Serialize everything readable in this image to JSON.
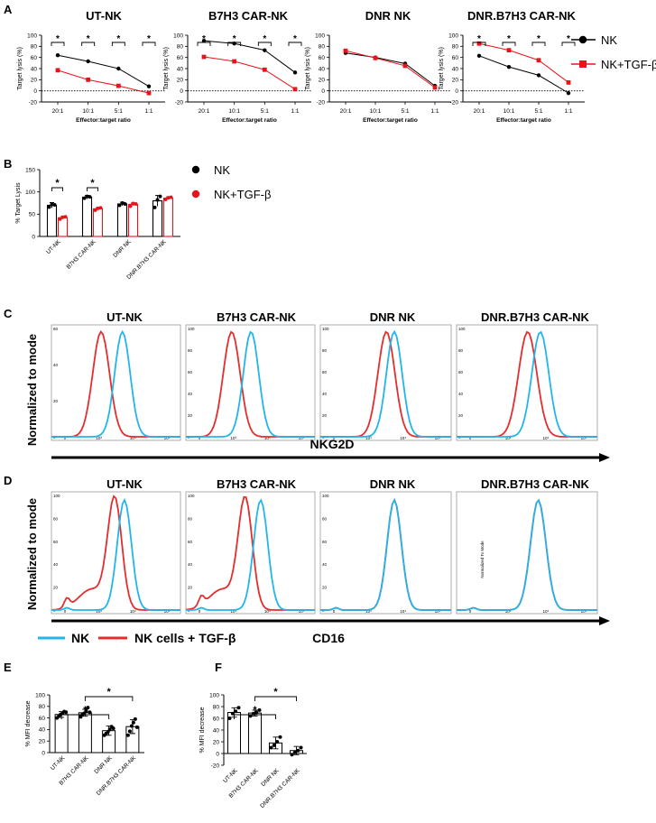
{
  "colors": {
    "nk": "#000000",
    "tgf": "#e8141b",
    "hist_nk": "#22b5ec",
    "hist_tgf": "#e42d2d"
  },
  "panel_letters": [
    "A",
    "B",
    "C",
    "D",
    "E",
    "F"
  ],
  "legend": {
    "a_nk": "NK",
    "a_tgf": "NK+TGF-β",
    "b_nk": "NK",
    "b_tgf": "NK+TGF-β",
    "cd_nk": "NK",
    "cd_tgf": "NK cells + TGF-β"
  },
  "common": {
    "flow_ylabel": "Normalized to mode",
    "nkg2d_label": "NKG2D",
    "cd16_label": "CD16",
    "d4_small_label": "Normalized To Mode",
    "a_ylabel": "Target lysis (%)",
    "a_xlabel": "Effector:target ratio",
    "b_ylabel": "% Target Lysis",
    "ef_ylabel": "% MFI decrease",
    "star": "*"
  },
  "chart_data": [
    {
      "id": "A1",
      "type": "line",
      "title": "UT-NK",
      "categories": [
        "20:1",
        "10:1",
        "5:1",
        "1:1"
      ],
      "ylim": [
        -20,
        100
      ],
      "yticks": [
        "100",
        "80",
        "60",
        "40",
        "20",
        "0",
        "-20"
      ],
      "series": [
        {
          "name": "NK",
          "values": [
            64,
            53,
            40,
            8
          ]
        },
        {
          "name": "NK+TGF-β",
          "values": [
            37,
            20,
            9,
            -4
          ]
        }
      ],
      "significance": [
        "*",
        "*",
        "*",
        "*"
      ],
      "xlabel": "Effector:target ratio",
      "ylabel": "Target lysis (%)"
    },
    {
      "id": "A2",
      "type": "line",
      "title": "B7H3 CAR-NK",
      "categories": [
        "20:1",
        "10:1",
        "5:1",
        "1:1"
      ],
      "ylim": [
        -20,
        100
      ],
      "yticks": [
        "100",
        "80",
        "60",
        "40",
        "20",
        "0",
        "-20"
      ],
      "series": [
        {
          "name": "NK",
          "values": [
            90,
            85,
            73,
            33
          ]
        },
        {
          "name": "NK+TGF-β",
          "values": [
            61,
            53,
            38,
            3
          ]
        }
      ],
      "significance": [
        "*",
        "*",
        "*",
        "*"
      ],
      "xlabel": "Effector:target ratio",
      "ylabel": "Target lysis (%)"
    },
    {
      "id": "A3",
      "type": "line",
      "title": "DNR NK",
      "categories": [
        "20:1",
        "10:1",
        "5:1",
        "1:1"
      ],
      "ylim": [
        -20,
        100
      ],
      "yticks": [
        "100",
        "80",
        "60",
        "40",
        "20",
        "0",
        "-20"
      ],
      "series": [
        {
          "name": "NK",
          "values": [
            68,
            60,
            49,
            9
          ]
        },
        {
          "name": "NK+TGF-β",
          "values": [
            72,
            59,
            45,
            6
          ]
        }
      ],
      "significance": [],
      "xlabel": "Effector:target ratio",
      "ylabel": "Target lysis (%)"
    },
    {
      "id": "A4",
      "type": "line",
      "title": "DNR.B7H3 CAR-NK",
      "categories": [
        "20:1",
        "10:1",
        "5:1",
        "1:1"
      ],
      "ylim": [
        -20,
        100
      ],
      "yticks": [
        "100",
        "80",
        "60",
        "40",
        "20",
        "0",
        "-20"
      ],
      "series": [
        {
          "name": "NK",
          "values": [
            63,
            43,
            28,
            -4
          ]
        },
        {
          "name": "NK+TGF-β",
          "values": [
            85,
            73,
            55,
            15
          ]
        }
      ],
      "significance": [
        "*",
        "*",
        "*",
        "*"
      ],
      "xlabel": "Effector:target ratio",
      "ylabel": "Target lysis (%)"
    },
    {
      "id": "B",
      "type": "bar",
      "title": "",
      "categories": [
        "UT-NK",
        "B7H3 CAR-NK",
        "DNR NK",
        "DNR.B7H3 CAR-NK"
      ],
      "ylim": [
        0,
        150
      ],
      "yticks": [
        "150",
        "100",
        "50",
        "0"
      ],
      "series": [
        {
          "name": "NK",
          "values": [
            70,
            88,
            73,
            80
          ],
          "errors": [
            6,
            4,
            4,
            12
          ],
          "points": [
            [
              66,
              72,
              71
            ],
            [
              86,
              90,
              89
            ],
            [
              70,
              75,
              73
            ],
            [
              65,
              82,
              90
            ]
          ]
        },
        {
          "name": "NK+TGF-β",
          "values": [
            42,
            62,
            72,
            86
          ],
          "errors": [
            3,
            3,
            3,
            3
          ],
          "points": [
            [
              39,
              43,
              44
            ],
            [
              59,
              63,
              64
            ],
            [
              68,
              74,
              73
            ],
            [
              83,
              87,
              88
            ]
          ]
        }
      ],
      "significance": [
        {
          "categories": [
            0
          ],
          "label": "*"
        },
        {
          "categories": [
            1
          ],
          "label": "*"
        }
      ],
      "ylabel": "% Target Lysis"
    },
    {
      "id": "E",
      "type": "bar",
      "title": "",
      "categories": [
        "UT-NK",
        "B7H3 CAR-NK",
        "DNR NK",
        "DNR.B7H3 CAR-NK"
      ],
      "ylim": [
        0,
        100
      ],
      "yticks": [
        "100",
        "80",
        "60",
        "40",
        "20",
        "0"
      ],
      "values": [
        66,
        69,
        38,
        45
      ],
      "errors": [
        5,
        6,
        8,
        12
      ],
      "points": [
        [
          60,
          63,
          66,
          68,
          71,
          70
        ],
        [
          62,
          66,
          68,
          72,
          78,
          70
        ],
        [
          30,
          33,
          36,
          40,
          45,
          42
        ],
        [
          30,
          37,
          46,
          52,
          58,
          44
        ]
      ],
      "significance": [
        {
          "from": 0,
          "to": 2,
          "label": "*"
        },
        {
          "from": 1,
          "to": 3,
          "label": "*"
        }
      ],
      "ylabel": "% MFI decrease"
    },
    {
      "id": "F",
      "type": "bar",
      "title": "",
      "categories": [
        "UT-NK",
        "B7H3 CAR-NK",
        "DNR NK",
        "DNR.B7H3 CAR-NK"
      ],
      "ylim": [
        -20,
        100
      ],
      "yticks": [
        "100",
        "80",
        "60",
        "40",
        "20",
        "0",
        "-20"
      ],
      "values": [
        70,
        69,
        18,
        5
      ],
      "errors": [
        8,
        5,
        10,
        7
      ],
      "points": [
        [
          60,
          68,
          72,
          78
        ],
        [
          64,
          68,
          70,
          74
        ],
        [
          10,
          14,
          20,
          28
        ],
        [
          -2,
          2,
          5,
          10
        ]
      ],
      "significance": [
        {
          "from": 0,
          "to": 2,
          "label": "*"
        },
        {
          "from": 1,
          "to": 3,
          "label": "*"
        }
      ],
      "ylabel": "% MFI decrease"
    },
    {
      "id": "C",
      "type": "histogram",
      "titles": [
        "UT-NK",
        "B7H3 CAR-NK",
        "DNR NK",
        "DNR.B7H3 CAR-NK"
      ],
      "marker": "NKG2D",
      "peaks": {
        "nk": [
          1.0,
          0.85,
          1.05,
          1.15
        ],
        "tgf": [
          0.45,
          0.35,
          0.85,
          0.85
        ]
      },
      "ytick_labels": [
        "60",
        "40",
        "20",
        "0"
      ],
      "ytick_labels_alt": [
        "100",
        "80",
        "60",
        "40",
        "20",
        "0"
      ],
      "xtick_labels": [
        "0",
        "10³",
        "10⁴",
        "10⁵"
      ]
    },
    {
      "id": "D",
      "type": "histogram",
      "titles": [
        "UT-NK",
        "B7H3 CAR-NK",
        "DNR NK",
        "DNR.B7H3 CAR-NK"
      ],
      "marker": "CD16",
      "peaks": {
        "nk": [
          1.05,
          1.1,
          1.05,
          1.1
        ],
        "tgf": [
          0.8,
          0.7,
          1.05,
          1.1
        ]
      },
      "ytick_labels": [
        "100",
        "80",
        "60",
        "40",
        "20",
        "0"
      ],
      "xtick_labels": [
        "0",
        "10³",
        "10⁴",
        "10⁵"
      ]
    }
  ]
}
